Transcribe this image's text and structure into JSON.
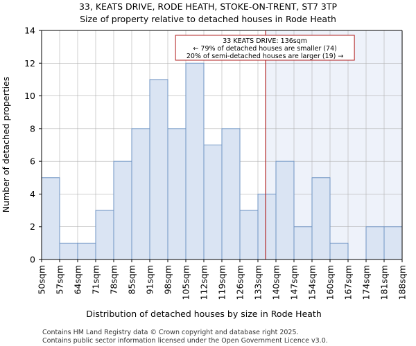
{
  "page": {
    "title_line1": "33, KEATS DRIVE, RODE HEATH, STOKE-ON-TRENT, ST7 3TP",
    "title_line2": "Size of property relative to detached houses in Rode Heath",
    "footer_line1": "Contains HM Land Registry data © Crown copyright and database right 2025.",
    "footer_line2": "Contains public sector information licensed under the Open Government Licence v3.0."
  },
  "chart_data": {
    "type": "bar",
    "xlabel": "Distribution of detached houses by size in Rode Heath",
    "ylabel": "Number of detached properties",
    "ylim": [
      0,
      14
    ],
    "yticks": [
      0,
      2,
      4,
      6,
      8,
      10,
      12,
      14
    ],
    "bin_edges": [
      50,
      57,
      64,
      71,
      78,
      85,
      91,
      98,
      105,
      112,
      119,
      126,
      133,
      140,
      147,
      154,
      160,
      167,
      174,
      181,
      188
    ],
    "bin_edge_labels": [
      "50sqm",
      "57sqm",
      "64sqm",
      "71sqm",
      "78sqm",
      "85sqm",
      "91sqm",
      "98sqm",
      "105sqm",
      "112sqm",
      "119sqm",
      "126sqm",
      "133sqm",
      "140sqm",
      "147sqm",
      "154sqm",
      "160sqm",
      "167sqm",
      "174sqm",
      "181sqm",
      "188sqm"
    ],
    "values": [
      5,
      1,
      1,
      3,
      6,
      8,
      11,
      8,
      12,
      7,
      8,
      3,
      4,
      6,
      2,
      5,
      1,
      0,
      2,
      2
    ],
    "grid": true,
    "marker": {
      "value": 136,
      "label": "33 KEATS DRIVE: 136sqm",
      "line2": "← 79% of detached houses are smaller (74)",
      "line3": "20% of semi-detached houses are larger (19) →"
    },
    "colors": {
      "bar_fill": "#dae4f3",
      "bar_edge": "#6e93c3",
      "highlight_fill": "#eef2fa",
      "marker_line": "#b22222",
      "grid": "#b0b0b0",
      "axis": "#000000"
    }
  }
}
